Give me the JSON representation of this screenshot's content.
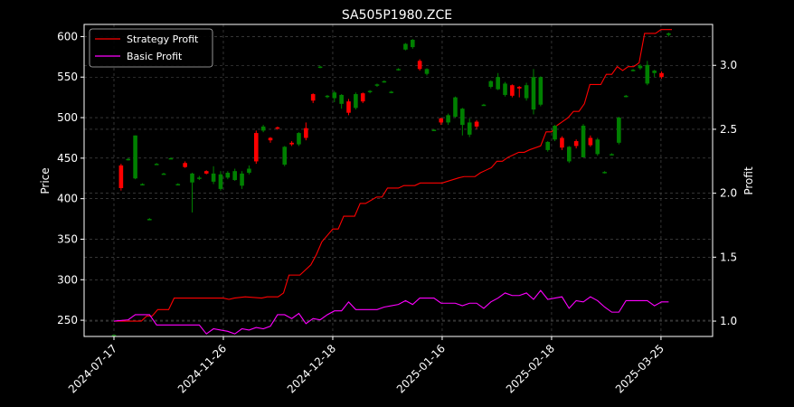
{
  "chart_data": {
    "type": "candlestick+line",
    "title": "SA505P1980.ZCE",
    "ylabel_left": "Price",
    "ylabel_right": "Profit",
    "ylim_left": [
      230,
      615
    ],
    "ylim_right": [
      0.88,
      3.32
    ],
    "yticks_left": [
      250,
      300,
      350,
      400,
      450,
      500,
      550,
      600
    ],
    "yticks_right": [
      1.0,
      1.5,
      2.0,
      2.5,
      3.0
    ],
    "x_tick_labels": [
      {
        "label": "2024-07-17",
        "index": 0
      },
      {
        "label": "2024-11-26",
        "index": 20
      },
      {
        "label": "2024-12-18",
        "index": 40
      },
      {
        "label": "2025-01-16",
        "index": 60
      },
      {
        "label": "2025-02-18",
        "index": 80
      },
      {
        "label": "2025-03-25",
        "index": 100
      }
    ],
    "n_points": 103,
    "grid": true,
    "legend_placement": "top-left",
    "colors": {
      "up": "#008000",
      "down": "#ff0000",
      "strategy": "#ff0000",
      "basic": "#ff00ff",
      "background": "#000000",
      "foreground": "#ffffff"
    },
    "candles": [
      [
        0,
        232,
        232,
        232,
        232
      ],
      [
        1,
        441,
        413,
        443,
        410
      ],
      [
        2,
        449,
        449,
        450,
        447
      ],
      [
        3,
        425,
        478,
        478,
        424
      ],
      [
        4,
        418,
        418,
        419,
        417
      ],
      [
        5,
        375,
        375,
        376,
        374
      ],
      [
        6,
        443,
        443,
        444,
        442
      ],
      [
        7,
        431,
        431,
        432,
        430
      ],
      [
        8,
        450,
        450,
        451,
        449
      ],
      [
        9,
        418,
        418,
        419,
        417
      ],
      [
        10,
        444,
        439,
        446,
        438
      ],
      [
        11,
        420,
        431,
        432,
        383
      ],
      [
        12,
        425,
        426,
        428,
        423
      ],
      [
        13,
        434,
        431,
        435,
        430
      ],
      [
        14,
        421,
        431,
        440,
        418
      ],
      [
        15,
        412,
        430,
        434,
        410
      ],
      [
        16,
        426,
        432,
        434,
        424
      ],
      [
        17,
        423,
        434,
        437,
        422
      ],
      [
        18,
        416,
        431,
        434,
        412
      ],
      [
        19,
        432,
        437,
        441,
        430
      ],
      [
        20,
        481,
        446,
        484,
        443
      ],
      [
        21,
        484,
        489,
        491,
        482
      ],
      [
        22,
        475,
        472,
        476,
        469
      ],
      [
        23,
        488,
        487,
        489,
        485
      ],
      [
        24,
        442,
        464,
        465,
        440
      ],
      [
        25,
        469,
        467,
        471,
        465
      ],
      [
        26,
        467,
        481,
        482,
        465
      ],
      [
        27,
        487,
        475,
        494,
        472
      ],
      [
        28,
        529,
        521,
        530,
        518
      ],
      [
        29,
        563,
        563,
        564,
        561
      ],
      [
        30,
        526,
        527,
        528,
        524
      ],
      [
        31,
        524,
        531,
        533,
        519
      ],
      [
        32,
        517,
        528,
        529,
        511
      ],
      [
        33,
        520,
        506,
        523,
        503
      ],
      [
        34,
        512,
        529,
        531,
        510
      ],
      [
        35,
        530,
        520,
        531,
        518
      ],
      [
        36,
        532,
        533,
        534,
        530
      ],
      [
        37,
        540,
        541,
        542,
        538
      ],
      [
        38,
        544,
        545,
        546,
        543
      ],
      [
        39,
        532,
        532,
        533,
        530
      ],
      [
        40,
        560,
        560,
        561,
        558
      ],
      [
        41,
        584,
        591,
        592,
        583
      ],
      [
        42,
        587,
        596,
        597,
        585
      ],
      [
        43,
        570,
        560,
        572,
        558
      ],
      [
        44,
        554,
        560,
        561,
        552
      ],
      [
        45,
        485,
        485,
        486,
        484
      ],
      [
        46,
        499,
        494,
        500,
        491
      ],
      [
        47,
        494,
        503,
        505,
        491
      ],
      [
        48,
        501,
        525,
        526,
        500
      ],
      [
        49,
        491,
        511,
        512,
        478
      ],
      [
        50,
        479,
        494,
        499,
        476
      ],
      [
        51,
        495,
        489,
        497,
        486
      ],
      [
        52,
        516,
        516,
        517,
        515
      ],
      [
        53,
        538,
        545,
        546,
        536
      ],
      [
        54,
        535,
        550,
        555,
        534
      ],
      [
        55,
        528,
        542,
        544,
        526
      ],
      [
        56,
        540,
        527,
        541,
        525
      ],
      [
        57,
        538,
        536,
        539,
        525
      ],
      [
        58,
        524,
        540,
        543,
        521
      ],
      [
        59,
        510,
        550,
        560,
        504
      ],
      [
        60,
        516,
        550,
        551,
        514
      ],
      [
        61,
        460,
        470,
        471,
        458
      ],
      [
        62,
        473,
        490,
        491,
        471
      ],
      [
        63,
        475,
        463,
        477,
        460
      ],
      [
        64,
        446,
        464,
        465,
        444
      ],
      [
        65,
        471,
        465,
        473,
        462
      ],
      [
        66,
        451,
        490,
        492,
        452
      ],
      [
        67,
        475,
        466,
        478,
        464
      ],
      [
        68,
        455,
        473,
        475,
        453
      ],
      [
        69,
        433,
        433,
        434,
        431
      ],
      [
        70,
        455,
        455,
        456,
        454
      ],
      [
        71,
        469,
        500,
        501,
        467
      ],
      [
        72,
        527,
        527,
        528,
        525
      ],
      [
        73,
        559,
        559,
        560,
        557
      ],
      [
        74,
        561,
        564,
        566,
        559
      ],
      [
        75,
        542,
        565,
        570,
        540
      ],
      [
        76,
        555,
        558,
        559,
        550
      ],
      [
        77,
        555,
        550,
        557,
        548
      ],
      [
        78,
        602,
        604,
        605,
        600
      ]
    ],
    "series": [
      {
        "name": "Strategy Profit",
        "values": [
          1.0,
          1.0,
          1.0,
          1.0,
          1.04,
          1.04,
          1.04,
          1.04,
          1.04,
          1.09,
          1.09,
          1.18,
          1.18,
          1.18,
          1.18,
          1.18,
          1.18,
          1.18,
          1.18,
          1.18,
          1.17,
          1.17,
          1.18,
          1.18,
          1.19,
          1.19,
          1.19,
          1.19,
          1.18,
          1.19,
          1.19,
          1.19,
          1.19,
          1.22,
          1.36,
          1.36,
          1.36,
          1.4,
          1.44,
          1.52,
          1.62,
          1.67,
          1.72,
          1.72,
          1.82,
          1.82,
          1.82,
          1.92,
          1.92,
          1.92,
          1.97,
          1.97,
          2.04,
          2.04,
          2.04,
          2.04,
          2.06,
          2.06,
          2.06,
          2.06,
          2.08,
          2.08,
          2.08,
          2.08,
          2.08,
          2.08,
          2.08,
          2.12,
          2.12,
          2.13,
          2.13,
          2.13,
          2.13,
          2.13,
          2.16,
          2.16,
          2.18,
          2.18,
          2.2,
          2.2,
          2.25,
          2.25,
          2.25,
          2.28,
          2.28,
          2.3,
          2.32,
          2.32,
          2.34,
          2.34,
          2.34,
          2.37,
          2.37,
          2.48,
          2.48,
          2.48,
          2.48,
          2.53,
          2.53,
          2.53,
          2.56,
          2.56,
          2.56,
          2.59,
          2.64,
          2.64,
          2.64,
          2.64,
          2.64,
          2.7,
          2.7,
          2.7,
          2.7,
          2.7,
          2.85,
          2.85,
          2.85,
          2.85,
          2.85,
          2.85,
          2.93,
          2.93,
          2.93,
          2.93,
          2.93,
          2.93,
          2.93,
          2.93,
          2.94,
          2.94,
          2.94,
          2.94,
          2.94,
          2.96,
          2.96,
          2.96,
          2.99,
          2.99,
          2.99,
          3.02,
          3.02,
          3.02,
          3.02,
          3.06,
          3.06,
          3.06,
          3.06,
          3.08,
          3.08,
          3.08,
          3.08,
          3.08,
          3.08,
          3.08,
          3.25,
          3.25,
          3.25,
          3.25,
          3.28,
          3.28,
          3.28,
          3.28
        ]
      },
      {
        "name": "Basic Profit",
        "values": [
          1.0
        ]
      }
    ],
    "strategy_profit": [
      [
        0,
        1.0
      ],
      [
        5,
        1.0
      ],
      [
        6,
        1.04
      ],
      [
        7,
        1.04
      ],
      [
        8,
        1.09
      ],
      [
        9,
        1.09
      ],
      [
        10,
        1.09
      ],
      [
        11,
        1.18
      ],
      [
        12,
        1.18
      ],
      [
        20,
        1.18
      ],
      [
        21,
        1.17
      ],
      [
        22,
        1.18
      ],
      [
        24,
        1.19
      ],
      [
        27,
        1.18
      ],
      [
        28,
        1.19
      ],
      [
        30,
        1.19
      ],
      [
        31,
        1.22
      ],
      [
        32,
        1.36
      ],
      [
        34,
        1.36
      ],
      [
        36,
        1.44
      ],
      [
        37,
        1.52
      ],
      [
        38,
        1.62
      ],
      [
        39,
        1.67
      ],
      [
        40,
        1.72
      ],
      [
        41,
        1.72
      ],
      [
        42,
        1.82
      ],
      [
        44,
        1.82
      ],
      [
        45,
        1.92
      ],
      [
        46,
        1.92
      ],
      [
        48,
        1.97
      ],
      [
        49,
        1.97
      ],
      [
        50,
        2.04
      ],
      [
        52,
        2.04
      ],
      [
        53,
        2.06
      ],
      [
        55,
        2.06
      ],
      [
        56,
        2.08
      ],
      [
        60,
        2.08
      ],
      [
        63,
        2.12
      ],
      [
        64,
        2.13
      ],
      [
        66,
        2.13
      ],
      [
        67,
        2.16
      ],
      [
        68,
        2.18
      ],
      [
        69,
        2.2
      ],
      [
        70,
        2.25
      ],
      [
        71,
        2.25
      ],
      [
        72,
        2.28
      ],
      [
        73,
        2.3
      ],
      [
        74,
        2.32
      ],
      [
        75,
        2.32
      ],
      [
        76,
        2.34
      ],
      [
        78,
        2.37
      ],
      [
        79,
        2.48
      ],
      [
        80,
        2.48
      ],
      [
        81,
        2.53
      ],
      [
        82,
        2.56
      ],
      [
        83,
        2.59
      ],
      [
        84,
        2.64
      ],
      [
        85,
        2.64
      ],
      [
        86,
        2.7
      ],
      [
        87,
        2.85
      ],
      [
        88,
        2.85
      ],
      [
        89,
        2.85
      ],
      [
        90,
        2.93
      ],
      [
        91,
        2.93
      ],
      [
        92,
        2.99
      ],
      [
        93,
        2.96
      ],
      [
        94,
        2.99
      ],
      [
        95,
        2.99
      ],
      [
        96,
        3.02
      ],
      [
        97,
        3.25
      ],
      [
        98,
        3.25
      ],
      [
        99,
        3.25
      ],
      [
        100,
        3.28
      ],
      [
        101,
        3.28
      ],
      [
        102,
        3.28
      ]
    ],
    "basic_profit": [
      [
        0,
        1.0
      ],
      [
        2,
        1.01
      ],
      [
        3,
        1.05
      ],
      [
        5,
        1.05
      ],
      [
        6,
        0.97
      ],
      [
        9,
        0.97
      ],
      [
        11,
        0.97
      ],
      [
        12,
        0.97
      ],
      [
        13,
        0.9
      ],
      [
        14,
        0.94
      ],
      [
        15,
        0.93
      ],
      [
        16,
        0.92
      ],
      [
        17,
        0.9
      ],
      [
        18,
        0.94
      ],
      [
        19,
        0.93
      ],
      [
        20,
        0.95
      ],
      [
        21,
        0.94
      ],
      [
        22,
        0.96
      ],
      [
        23,
        1.05
      ],
      [
        24,
        1.05
      ],
      [
        25,
        1.02
      ],
      [
        26,
        1.06
      ],
      [
        27,
        0.98
      ],
      [
        28,
        1.02
      ],
      [
        29,
        1.01
      ],
      [
        30,
        1.05
      ],
      [
        31,
        1.08
      ],
      [
        32,
        1.08
      ],
      [
        33,
        1.15
      ],
      [
        34,
        1.09
      ],
      [
        35,
        1.09
      ],
      [
        37,
        1.09
      ],
      [
        38,
        1.11
      ],
      [
        39,
        1.12
      ],
      [
        40,
        1.13
      ],
      [
        41,
        1.16
      ],
      [
        42,
        1.13
      ],
      [
        43,
        1.18
      ],
      [
        45,
        1.18
      ],
      [
        46,
        1.14
      ],
      [
        47,
        1.14
      ],
      [
        48,
        1.14
      ],
      [
        49,
        1.12
      ],
      [
        50,
        1.14
      ],
      [
        51,
        1.14
      ],
      [
        52,
        1.1
      ],
      [
        53,
        1.15
      ],
      [
        54,
        1.18
      ],
      [
        55,
        1.22
      ],
      [
        56,
        1.2
      ],
      [
        57,
        1.2
      ],
      [
        58,
        1.22
      ],
      [
        59,
        1.17
      ],
      [
        60,
        1.24
      ],
      [
        61,
        1.17
      ],
      [
        62,
        1.18
      ],
      [
        63,
        1.19
      ],
      [
        64,
        1.1
      ],
      [
        65,
        1.16
      ],
      [
        66,
        1.15
      ],
      [
        67,
        1.19
      ],
      [
        68,
        1.16
      ],
      [
        69,
        1.11
      ],
      [
        70,
        1.07
      ],
      [
        71,
        1.07
      ],
      [
        72,
        1.16
      ],
      [
        73,
        1.16
      ],
      [
        74,
        1.16
      ],
      [
        75,
        1.16
      ],
      [
        76,
        1.12
      ],
      [
        77,
        1.15
      ],
      [
        78,
        1.15
      ]
    ],
    "legend": [
      "Strategy Profit",
      "Basic Profit"
    ]
  }
}
